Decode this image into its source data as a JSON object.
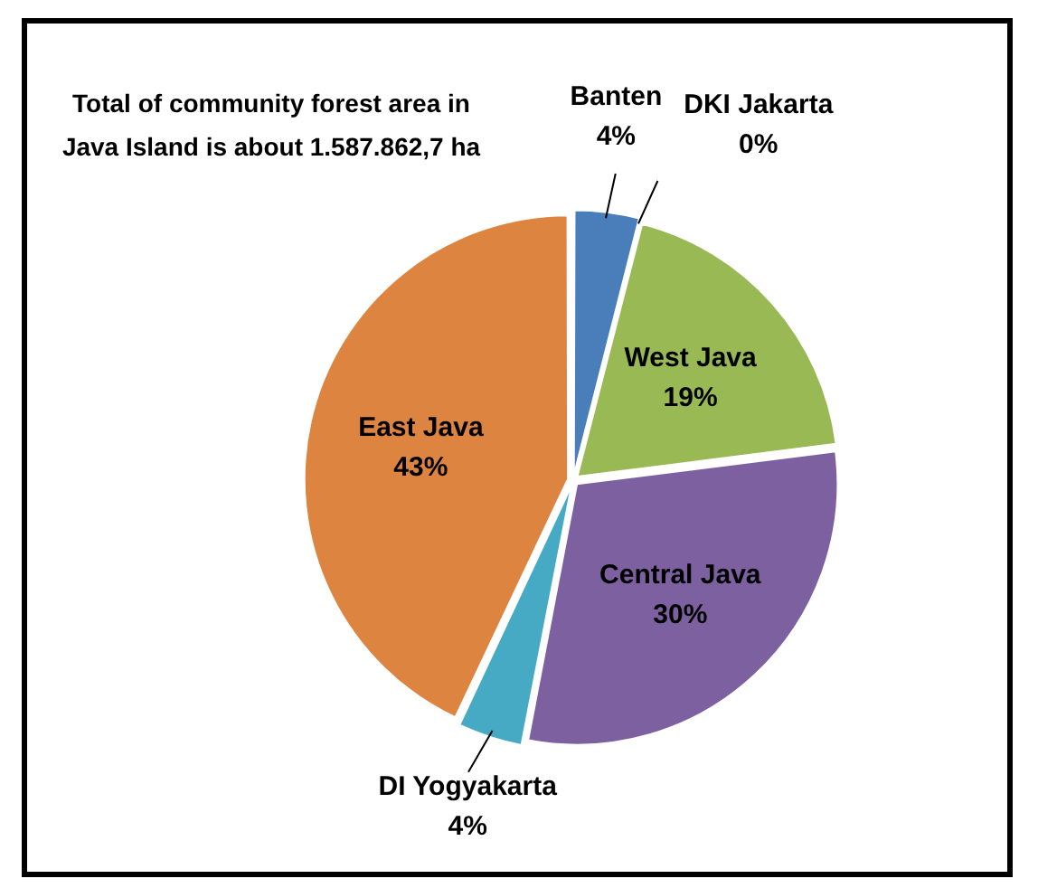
{
  "chart_data": {
    "type": "pie",
    "categories": [
      "Banten",
      "DKI Jakarta",
      "West Java",
      "Central Java",
      "DI Yogyakarta",
      "East Java"
    ],
    "values": [
      4,
      0,
      19,
      30,
      4,
      43
    ],
    "value_labels": [
      "4%",
      "0%",
      "19%",
      "30%",
      "4%",
      "43%"
    ],
    "colors": [
      "#4a7ebb",
      "#be4b48",
      "#98b954",
      "#7d60a0",
      "#46aac5",
      "#dd8440"
    ],
    "annotations": [
      "Total of community forest area in Java Island is about 1.587.862,7 ha"
    ],
    "legend": false
  }
}
